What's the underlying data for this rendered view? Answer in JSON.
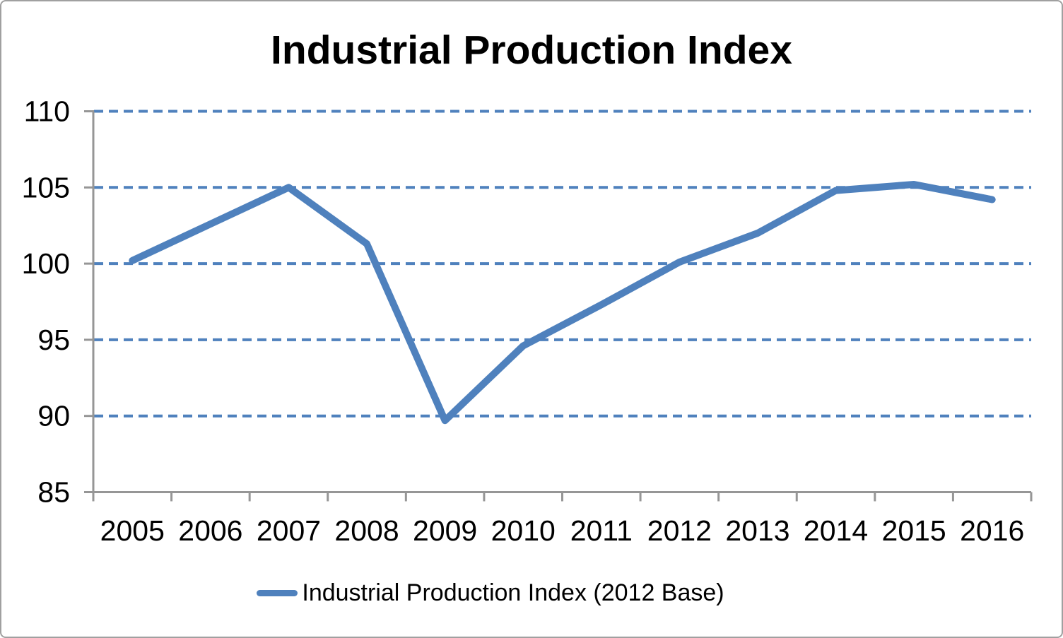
{
  "title": "Industrial Production Index",
  "legend": {
    "label": "Industrial Production Index (2012 Base)"
  },
  "colors": {
    "series": "#4F81BD",
    "gridline": "#4F81BD",
    "axis": "#969696",
    "border": "#A0A0A0",
    "text": "#000000",
    "background": "#FFFFFF"
  },
  "chart_data": {
    "type": "line",
    "title": "Industrial Production Index",
    "categories": [
      "2005",
      "2006",
      "2007",
      "2008",
      "2009",
      "2010",
      "2011",
      "2012",
      "2013",
      "2014",
      "2015",
      "2016"
    ],
    "series": [
      {
        "name": "Industrial Production Index (2012 Base)",
        "values": [
          100.2,
          102.6,
          105.0,
          101.3,
          89.7,
          94.6,
          97.3,
          100.1,
          102.0,
          104.8,
          105.2,
          104.2
        ]
      }
    ],
    "xlabel": "",
    "ylabel": "",
    "ylim": [
      85,
      110
    ],
    "yticks": [
      85,
      90,
      95,
      100,
      105,
      110
    ],
    "grid": "horizontal-dashed",
    "gridline_values": [
      90,
      95,
      100,
      105,
      110
    ],
    "legend_position": "bottom"
  }
}
